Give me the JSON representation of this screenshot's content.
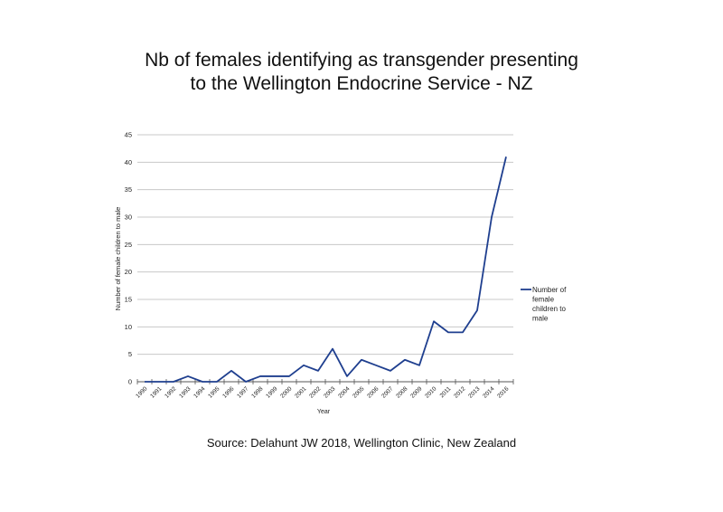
{
  "chart_data": {
    "type": "line",
    "title_lines": [
      "Nb of females identifying as transgender presenting",
      "to the Wellington Endocrine Service - NZ"
    ],
    "xlabel": "Year",
    "ylabel": "Number of female children to male",
    "categories": [
      "1990",
      "1991",
      "1992",
      "1993",
      "1994",
      "1995",
      "1996",
      "1997",
      "1998",
      "1999",
      "2000",
      "2001",
      "2002",
      "2003",
      "2004",
      "2005",
      "2006",
      "2007",
      "2008",
      "2009",
      "2010",
      "2011",
      "2012",
      "2013",
      "2014",
      "2016"
    ],
    "series": [
      {
        "name": "Number of female children to male",
        "legend_lines": [
          "Number of",
          "female",
          "children to",
          "male"
        ],
        "color": "#1f3f8f",
        "values": [
          0,
          0,
          0,
          1,
          0,
          0,
          2,
          0,
          1,
          1,
          1,
          3,
          2,
          6,
          1,
          4,
          3,
          2,
          4,
          3,
          11,
          9,
          9,
          13,
          30,
          41
        ]
      }
    ],
    "ylim": [
      0,
      45
    ],
    "yticks": [
      0,
      5,
      10,
      15,
      20,
      25,
      30,
      35,
      40,
      45
    ],
    "grid": true,
    "legend_position": "right"
  },
  "source": "Source: Delahunt JW 2018, Wellington Clinic, New Zealand"
}
